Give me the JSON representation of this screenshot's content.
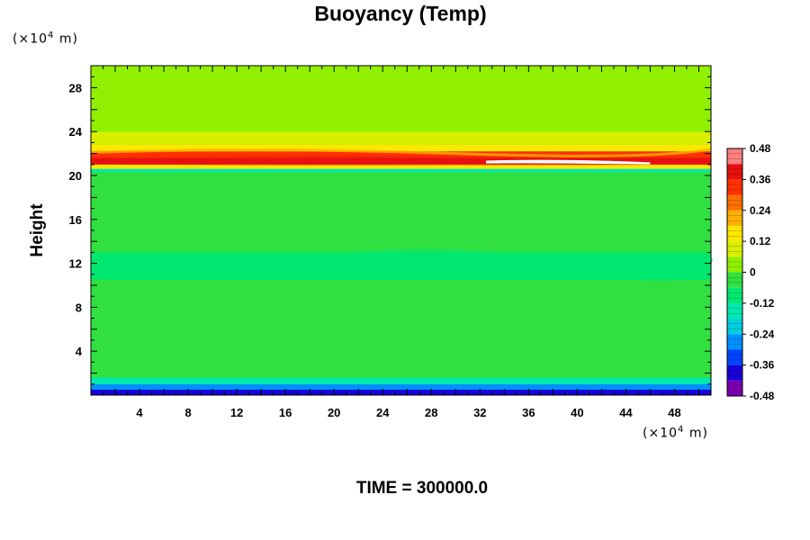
{
  "chart_data": {
    "type": "heatmap",
    "title": "Buoyancy (Temp)",
    "ylabel": "Height",
    "y_unit_prefix": "(×10",
    "unit_exp": "4",
    "unit_suffix": " m)",
    "x_unit_prefix": "(×10",
    "xlim": [
      0,
      51
    ],
    "ylim": [
      0,
      30
    ],
    "x_ticks": [
      4,
      8,
      12,
      16,
      20,
      24,
      28,
      32,
      36,
      40,
      44,
      48
    ],
    "y_ticks": [
      4,
      8,
      12,
      16,
      20,
      24,
      28
    ],
    "colorbar": {
      "range": [
        -0.48,
        0.48
      ],
      "tick_values": [
        0.48,
        0.36,
        0.24,
        0.12,
        0,
        -0.12,
        -0.24,
        -0.36,
        -0.48
      ],
      "tick_labels": [
        "0.48",
        "0.36",
        "0.24",
        "0.12",
        "0",
        "-0.12",
        "-0.24",
        "-0.36",
        "-0.48"
      ],
      "colors": [
        "#7a00b0",
        "#1a00d8",
        "#0044ff",
        "#0090ff",
        "#00d0e0",
        "#00e8b0",
        "#00e870",
        "#30e040",
        "#90f000",
        "#d8f000",
        "#ffe800",
        "#ffb000",
        "#ff7000",
        "#ff3000",
        "#e81010",
        "#ff8080"
      ]
    },
    "bands": [
      {
        "y0": 0,
        "y1": 0.5,
        "value": -0.42
      },
      {
        "y0": 0.5,
        "y1": 1.0,
        "value": -0.3
      },
      {
        "y0": 1.0,
        "y1": 1.6,
        "value": -0.14
      },
      {
        "y0": 1.6,
        "y1": 10.5,
        "value": -0.04
      },
      {
        "y0": 10.5,
        "y1": 13.0,
        "value": -0.08
      },
      {
        "y0": 13.0,
        "y1": 19.5,
        "value": -0.04
      },
      {
        "y0": 19.5,
        "y1": 20.3,
        "value": -0.02
      },
      {
        "y0": 20.3,
        "y1": 20.6,
        "value": -0.16
      },
      {
        "y0": 20.6,
        "y1": 21.0,
        "value": 0.18
      },
      {
        "y0": 21.0,
        "y1": 21.6,
        "value": 0.36
      },
      {
        "y0": 21.6,
        "y1": 22.2,
        "value": 0.3
      },
      {
        "y0": 22.2,
        "y1": 22.8,
        "value": 0.14
      },
      {
        "y0": 22.8,
        "y1": 24.0,
        "value": 0.08
      },
      {
        "y0": 24.0,
        "y1": 30.0,
        "value": 0.03
      }
    ],
    "annotation": "TIME = 300000.0"
  }
}
